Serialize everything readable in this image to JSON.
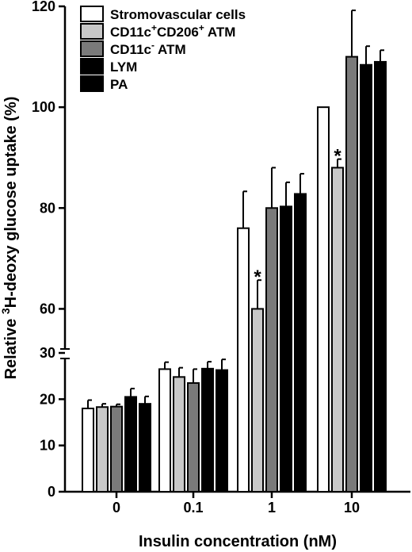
{
  "chart_data": {
    "type": "bar",
    "xlabel": "Insulin concentration (nM)",
    "ylabel": [
      "Relative ",
      "3",
      "H-deoxy glucose uptake (%)"
    ],
    "categories": [
      "0",
      "0.1",
      "1",
      "10"
    ],
    "y_axis": {
      "broken": true,
      "lower_segment": [
        0,
        30
      ],
      "upper_segment": [
        50,
        120
      ],
      "lower_ticks": [
        0,
        10,
        20,
        30
      ],
      "upper_ticks": [
        60,
        80,
        100,
        120
      ]
    },
    "series": [
      {
        "name": [
          "Stromovascular cells"
        ],
        "color": "#ffffff",
        "values": [
          18,
          26.5,
          76,
          100
        ],
        "errors": [
          1.8,
          1.5,
          7.3,
          0
        ]
      },
      {
        "name": [
          "CD11c",
          "+",
          "CD206",
          "+",
          " ATM"
        ],
        "color": "#c8c8c8",
        "values": [
          18.3,
          24.8,
          60,
          88
        ],
        "errors": [
          0.7,
          2.0,
          5.7,
          1.7
        ]
      },
      {
        "name": [
          "CD11c",
          "-",
          " ATM"
        ],
        "color": "#7a7a7a",
        "values": [
          18.4,
          23.5,
          80,
          110
        ],
        "errors": [
          0.5,
          3.0,
          8.0,
          9.2
        ]
      },
      {
        "name": [
          "LYM"
        ],
        "color": "#000000",
        "values": [
          20.5,
          26.6,
          80.3,
          108.4
        ],
        "errors": [
          1.8,
          1.5,
          4.8,
          3.7
        ]
      },
      {
        "name": [
          "PA"
        ],
        "color": "#000000",
        "values": [
          19,
          26.3,
          82.8,
          109
        ],
        "errors": [
          1.6,
          2.3,
          4.0,
          2.3
        ]
      }
    ],
    "annotations": [
      {
        "text": "*",
        "category": "1",
        "series_index": 1
      },
      {
        "text": "*",
        "category": "10",
        "series_index": 1
      }
    ],
    "legend_position": "top-left"
  }
}
